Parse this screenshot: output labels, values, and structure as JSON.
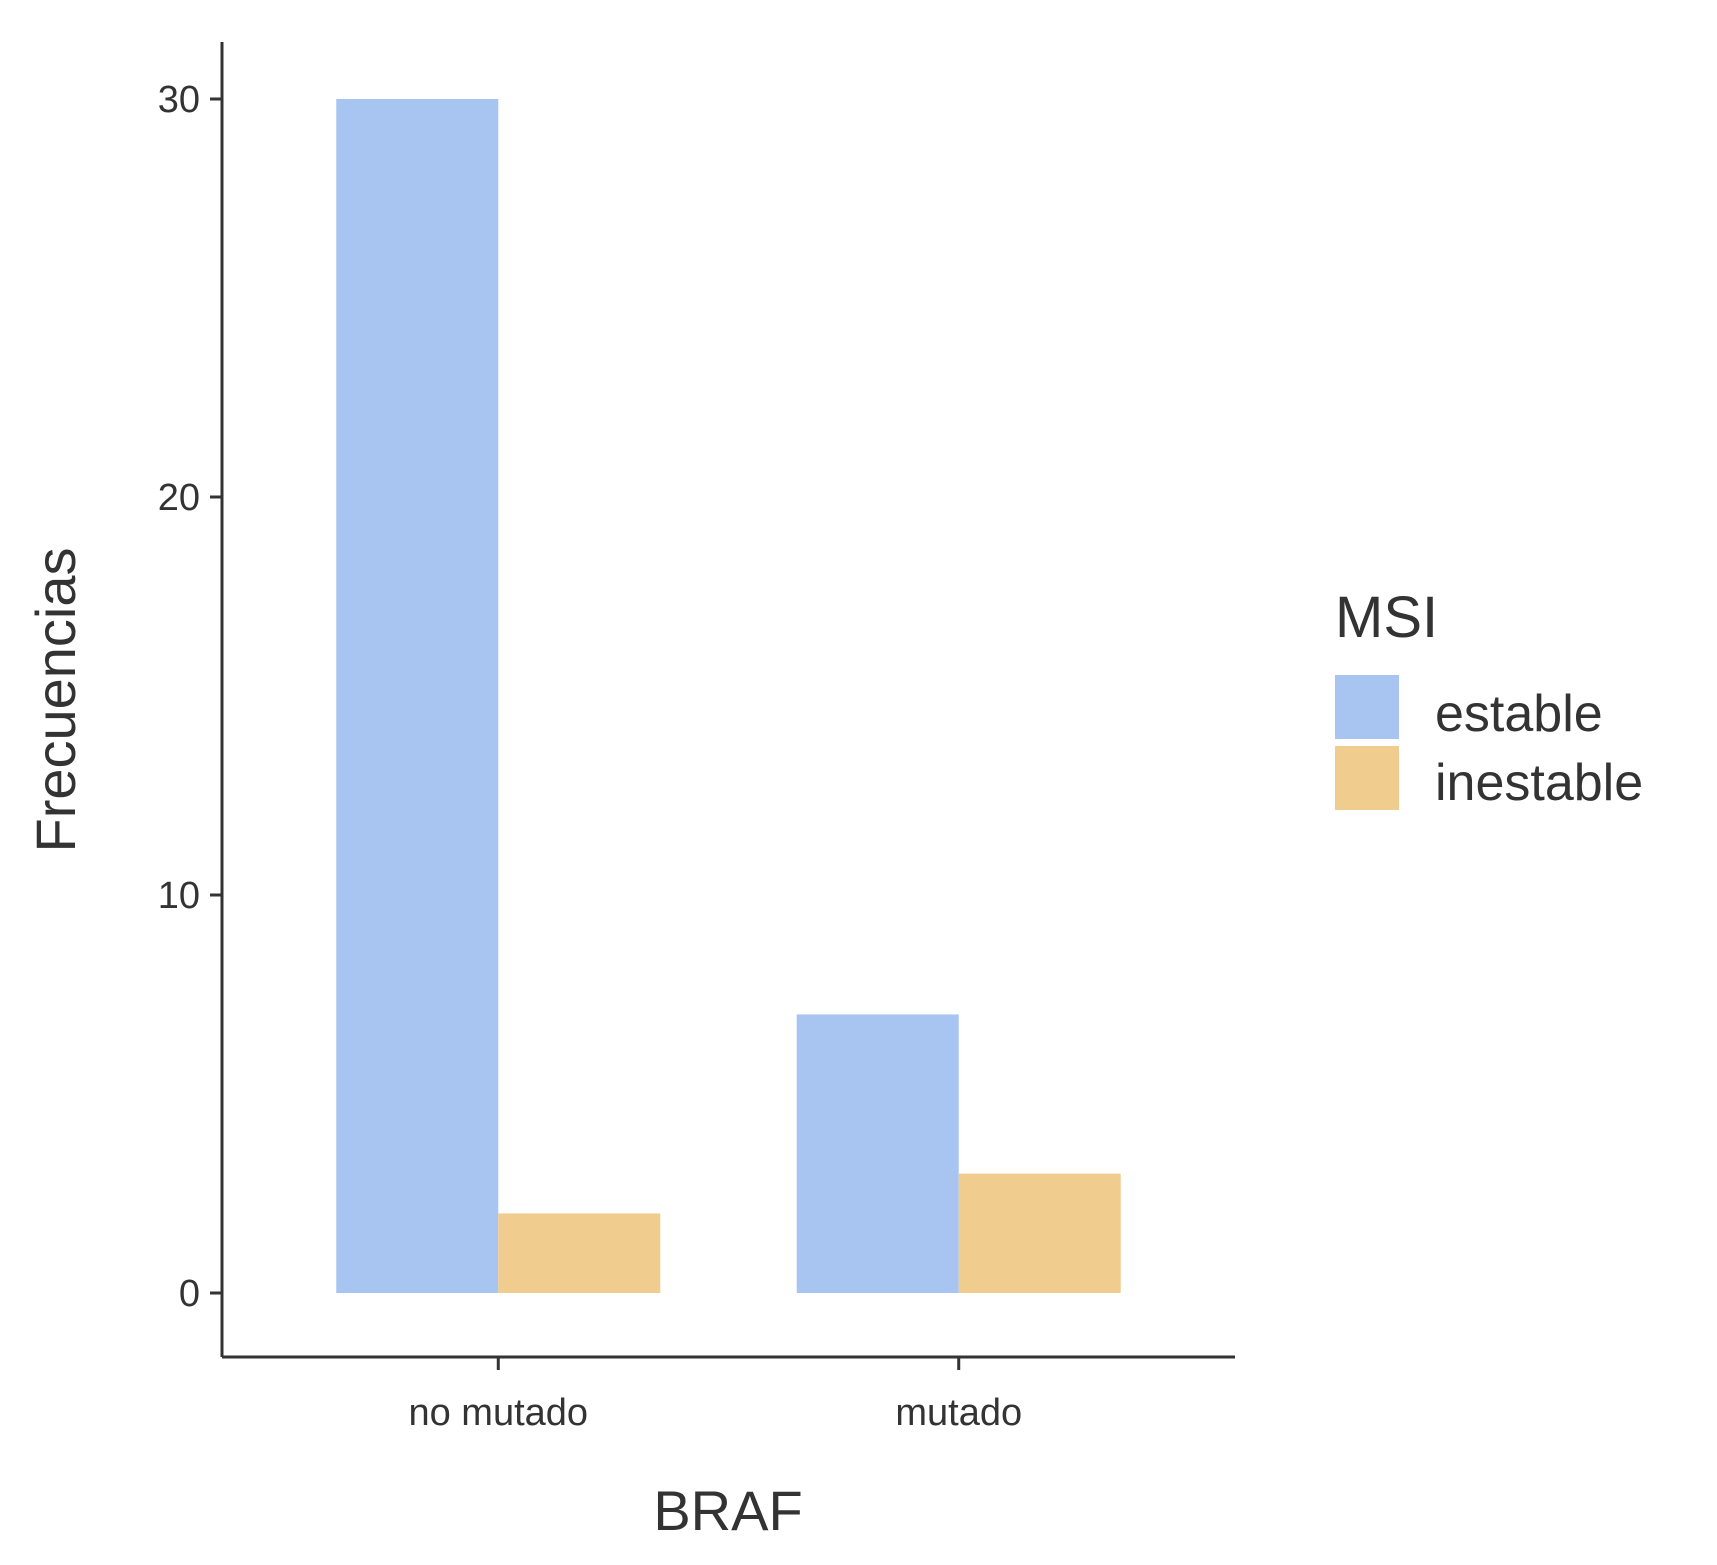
{
  "chart_data": {
    "type": "bar",
    "xlabel": "BRAF",
    "ylabel": "Frecuencias",
    "categories": [
      "no mutado",
      "mutado"
    ],
    "series": [
      {
        "name": "estable",
        "values": [
          30,
          7
        ],
        "color": "#a8c4f0"
      },
      {
        "name": "inestable",
        "values": [
          2,
          3
        ],
        "color": "#f0cd8e"
      }
    ],
    "ylim": [
      -1.5,
      32
    ],
    "yticks": [
      0,
      10,
      20,
      30
    ],
    "legend": {
      "title": "MSI",
      "position": "right"
    },
    "grid": false
  }
}
